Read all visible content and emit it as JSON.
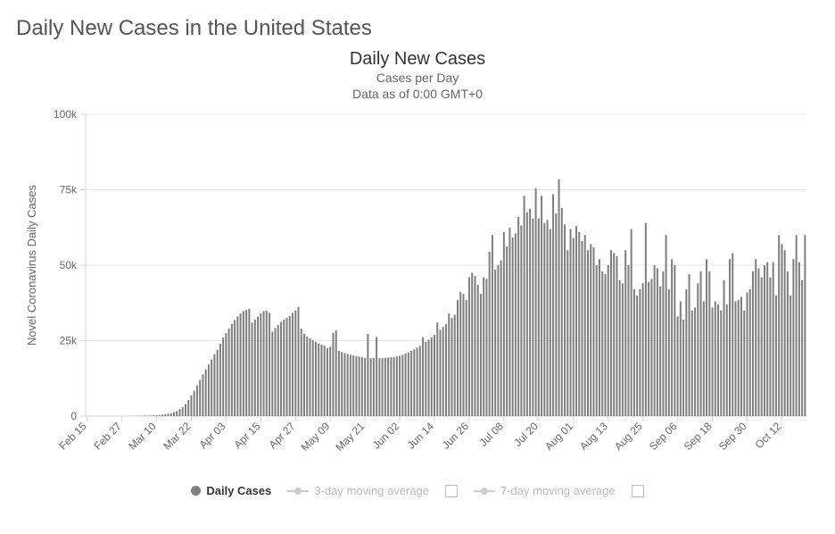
{
  "page": {
    "title": "Daily New Cases in the United States"
  },
  "chart": {
    "type": "bar",
    "title": "Daily New Cases",
    "subtitle1": "Cases per Day",
    "subtitle2": "Data as of 0:00 GMT+0",
    "y_axis_label": "Novel Coronavirus Daily Cases",
    "title_fontsize": 20,
    "subtitle_fontsize": 14,
    "axis_label_fontsize": 13,
    "tick_fontsize": 12,
    "background_color": "#ffffff",
    "plot_background": "#ffffff",
    "grid_color": "#e6e6e6",
    "axis_color": "#cfd6df",
    "tick_color": "#666666",
    "bar_color": "#7f7f7f",
    "bar_width_ratio": 0.62,
    "ylim": [
      0,
      100000
    ],
    "yticks": [
      0,
      25000,
      50000,
      75000,
      100000
    ],
    "ytick_labels": [
      "0",
      "25k",
      "50k",
      "75k",
      "100k"
    ],
    "x_tick_label_rotation_deg": 45,
    "x_tick_labels": [
      "Feb 15",
      "Feb 27",
      "Mar 10",
      "Mar 22",
      "Apr 03",
      "Apr 15",
      "Apr 27",
      "May 09",
      "May 21",
      "Jun 02",
      "Jun 14",
      "Jun 26",
      "Jul 08",
      "Jul 20",
      "Aug 01",
      "Aug 13",
      "Aug 25",
      "Sep 06",
      "Sep 18",
      "Sep 30",
      "Oct 12"
    ],
    "x_tick_step_days": 12,
    "values": [
      0,
      0,
      0,
      0,
      0,
      0,
      0,
      0,
      0,
      0,
      0,
      0,
      0,
      0,
      0,
      50,
      70,
      90,
      110,
      130,
      150,
      180,
      210,
      250,
      300,
      360,
      480,
      600,
      780,
      1000,
      1300,
      1700,
      2300,
      3000,
      4000,
      5300,
      6800,
      8400,
      10200,
      12000,
      13800,
      15500,
      17200,
      18800,
      20500,
      22000,
      24000,
      26000,
      27500,
      29000,
      30500,
      31800,
      33000,
      34000,
      34800,
      35200,
      35500,
      31000,
      32000,
      33000,
      34000,
      34800,
      35000,
      34200,
      28000,
      29200,
      30200,
      31200,
      32000,
      32600,
      33200,
      34200,
      35000,
      36200,
      29000,
      27200,
      26400,
      25800,
      25200,
      24600,
      24100,
      23700,
      23400,
      22500,
      23000,
      27600,
      28400,
      21600,
      21200,
      20900,
      20600,
      20300,
      20100,
      19900,
      19700,
      19500,
      19300,
      27200,
      19200,
      19200,
      26200,
      19200,
      19200,
      19300,
      19400,
      19500,
      19600,
      19800,
      20000,
      20300,
      20700,
      21100,
      21600,
      22100,
      22700,
      23300,
      26100,
      24600,
      25300,
      26100,
      26900,
      31000,
      28600,
      29500,
      30500,
      34000,
      32500,
      33600,
      38500,
      41200,
      40500,
      38500,
      46000,
      47500,
      46500,
      43500,
      40500,
      46000,
      45500,
      54500,
      60000,
      48500,
      50100,
      51600,
      61000,
      56200,
      62500,
      59200,
      60500,
      66000,
      63200,
      73000,
      67500,
      68700,
      65500,
      75500,
      65500,
      73000,
      64000,
      65000,
      62000,
      73500,
      67200,
      78500,
      69000,
      63500,
      55000,
      62000,
      59000,
      63000,
      61000,
      58000,
      60000,
      55000,
      57000,
      56000,
      50000,
      52000,
      48000,
      47000,
      50000,
      55000,
      54000,
      53000,
      45000,
      44000,
      55000,
      50000,
      62000,
      42000,
      40000,
      42000,
      44000,
      64000,
      44500,
      45500,
      50000,
      49000,
      43000,
      48000,
      60000,
      42000,
      52000,
      50000,
      33000,
      38000,
      32000,
      42000,
      47000,
      35000,
      36000,
      44000,
      48000,
      38000,
      52000,
      48000,
      36000,
      38000,
      37000,
      35000,
      45000,
      37000,
      52000,
      54000,
      38000,
      38500,
      39500,
      35000,
      41000,
      42000,
      48000,
      52000,
      49000,
      46000,
      50000,
      51000,
      46000,
      51000,
      40000,
      60000,
      57000,
      55000,
      48000,
      40000,
      52000,
      60000,
      51000,
      45000,
      60000
    ]
  },
  "legend": {
    "items": [
      {
        "label": "Daily Cases",
        "type": "dot",
        "color": "#7f7f7f",
        "active": true,
        "checkbox": false
      },
      {
        "label": "3-day moving average",
        "type": "line-dot",
        "color": "#cccccc",
        "active": false,
        "checkbox": true
      },
      {
        "label": "7-day moving average",
        "type": "line-dot",
        "color": "#cccccc",
        "active": false,
        "checkbox": true
      }
    ]
  }
}
